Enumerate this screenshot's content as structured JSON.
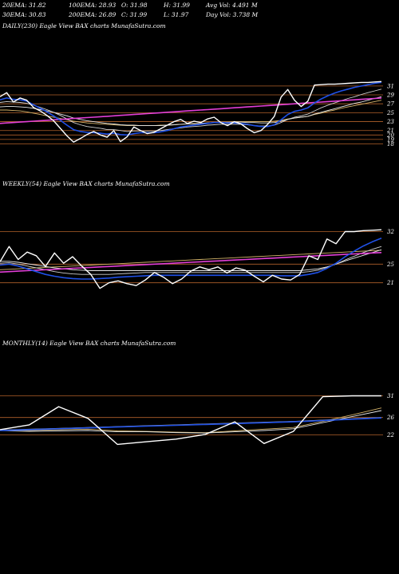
{
  "header": {
    "row1": [
      "20EMA: 31.82",
      "100EMA: 28.93",
      "O: 31.98",
      "H: 31.99",
      "Avg Vol: 4.491 M"
    ],
    "row2": [
      "30EMA: 30.83",
      "200EMA: 26.89",
      "C: 31.99",
      "L: 31.97",
      "Day Vol: 3.738  M"
    ]
  },
  "colors": {
    "background": "#000000",
    "gridline": "#b0602a",
    "price": "#ffffff",
    "ema_fast": "#1f50e6",
    "ema_mid": "#cfcfcf",
    "ema_slow": "#e8e8e8",
    "ema_long": "#e23fd6",
    "ema_alt": "#d4b36a"
  },
  "chart_data": [
    {
      "type": "line",
      "title": "DAILY(230) Eagle  View  BAX  charts MunafaSutra.com",
      "yticks": [
        31,
        29,
        27,
        25,
        23,
        21,
        20,
        19,
        18
      ],
      "ylim": [
        16.3,
        33.3
      ],
      "grid": true,
      "series": [
        {
          "key": "price",
          "values": [
            28.6,
            29.5,
            27.4,
            28.3,
            27.8,
            26.2,
            25.4,
            24.4,
            23.2,
            21.5,
            19.8,
            18.4,
            19.2,
            20.1,
            20.8,
            20.0,
            19.5,
            21.0,
            18.5,
            19.6,
            21.8,
            21.0,
            20.3,
            20.6,
            21.4,
            22.2,
            23.0,
            23.5,
            22.6,
            23.1,
            22.8,
            23.6,
            24.0,
            22.8,
            22.1,
            23.0,
            22.5,
            21.4,
            20.5,
            21.0,
            22.4,
            24.2,
            28.5,
            30.2,
            27.8,
            26.4,
            27.6,
            31.2,
            31.3,
            31.4,
            31.4,
            31.5,
            31.6,
            31.7,
            31.8,
            31.8,
            31.9,
            31.99
          ]
        },
        {
          "key": "ema_fast",
          "values": [
            27.9,
            28.3,
            28.0,
            27.9,
            27.6,
            26.8,
            26.0,
            25.2,
            24.3,
            23.3,
            22.2,
            21.2,
            20.8,
            20.6,
            20.5,
            20.4,
            20.2,
            20.4,
            20.1,
            20.0,
            20.3,
            20.5,
            20.5,
            20.5,
            20.7,
            21.0,
            21.4,
            21.8,
            22.0,
            22.2,
            22.4,
            22.6,
            22.8,
            22.8,
            22.7,
            22.7,
            22.6,
            22.4,
            22.1,
            21.9,
            21.9,
            22.3,
            23.4,
            24.6,
            25.3,
            25.6,
            26.1,
            27.2,
            28.1,
            28.8,
            29.4,
            29.9,
            30.3,
            30.7,
            31.0,
            31.3,
            31.6,
            31.82
          ]
        },
        {
          "key": "ema_mid",
          "values": [
            27.3,
            27.5,
            27.4,
            27.3,
            27.1,
            26.7,
            26.2,
            25.7,
            25.1,
            24.4,
            23.6,
            22.8,
            22.3,
            21.9,
            21.7,
            21.5,
            21.2,
            21.2,
            21.0,
            20.8,
            20.9,
            20.9,
            20.9,
            20.9,
            21.0,
            21.2,
            21.4,
            21.6,
            21.8,
            21.9,
            22.0,
            22.2,
            22.3,
            22.4,
            22.4,
            22.4,
            22.4,
            22.3,
            22.1,
            22.0,
            22.0,
            22.2,
            22.8,
            23.5,
            24.0,
            24.3,
            24.7,
            25.4,
            26.1,
            26.7,
            27.2,
            27.7,
            28.2,
            28.6,
            29.1,
            29.5,
            29.9,
            30.3
          ]
        },
        {
          "key": "ema_slow",
          "values": [
            26.3,
            26.4,
            26.4,
            26.3,
            26.2,
            26.0,
            25.7,
            25.4,
            25.1,
            24.7,
            24.3,
            23.8,
            23.5,
            23.2,
            23.0,
            22.8,
            22.6,
            22.5,
            22.3,
            22.2,
            22.2,
            22.1,
            22.1,
            22.1,
            22.1,
            22.2,
            22.3,
            22.4,
            22.5,
            22.5,
            22.6,
            22.7,
            22.8,
            22.8,
            22.8,
            22.9,
            22.9,
            22.8,
            22.8,
            22.7,
            22.7,
            22.8,
            23.1,
            23.5,
            23.8,
            24.0,
            24.2,
            24.7,
            25.1,
            25.5,
            25.9,
            26.3,
            26.7,
            27.1,
            27.4,
            27.8,
            28.2,
            28.6
          ]
        },
        {
          "key": "ema_long",
          "values": [
            22.6,
            22.7,
            22.8,
            22.9,
            23.0,
            23.1,
            23.2,
            23.3,
            23.4,
            23.5,
            23.6,
            23.7,
            23.8,
            23.9,
            24.0,
            24.1,
            24.2,
            24.3,
            24.4,
            24.5,
            24.6,
            24.7,
            24.8,
            24.9,
            25.0,
            25.1,
            25.2,
            25.3,
            25.4,
            25.5,
            25.6,
            25.7,
            25.8,
            25.9,
            26.0,
            26.1,
            26.2,
            26.3,
            26.4,
            26.5,
            26.6,
            26.7,
            26.8,
            26.9,
            27.0,
            27.1,
            27.2,
            27.3,
            27.4,
            27.5,
            27.6,
            27.7,
            27.8,
            27.9,
            28.0,
            28.1,
            28.2,
            28.3
          ]
        },
        {
          "key": "ema_alt",
          "values": [
            25.6,
            25.6,
            25.5,
            25.4,
            25.2,
            24.9,
            24.6,
            24.3,
            24.0,
            23.7,
            23.4,
            23.1,
            22.9,
            22.7,
            22.6,
            22.5,
            22.4,
            22.3,
            22.2,
            22.1,
            22.1,
            22.1,
            22.1,
            22.1,
            22.2,
            22.2,
            22.3,
            22.4,
            22.5,
            22.6,
            22.6,
            22.7,
            22.8,
            22.9,
            22.9,
            23.0,
            23.0,
            23.0,
            23.0,
            23.0,
            23.0,
            23.1,
            23.3,
            23.6,
            23.8,
            24.0,
            24.2,
            24.6,
            24.9,
            25.3,
            25.6,
            26.0,
            26.3,
            26.6,
            26.9,
            27.2,
            27.5,
            27.8
          ]
        }
      ]
    },
    {
      "type": "line",
      "title": "WEEKLY(54) Eagle  View  BAX  charts MunafaSutra.com",
      "yticks": [
        32,
        25,
        21
      ],
      "ylim": [
        17.0,
        33.8
      ],
      "grid": true,
      "series": [
        {
          "key": "price",
          "values": [
            25.5,
            28.8,
            26.0,
            27.6,
            26.8,
            24.5,
            27.4,
            25.2,
            26.6,
            24.6,
            22.8,
            19.8,
            21.0,
            21.4,
            20.8,
            20.4,
            21.6,
            23.2,
            22.2,
            20.8,
            21.8,
            23.5,
            24.4,
            23.8,
            24.4,
            23.1,
            24.2,
            23.7,
            22.4,
            21.2,
            22.6,
            21.8,
            21.6,
            22.8,
            26.8,
            26.0,
            30.4,
            29.4,
            32.0,
            32.0,
            32.2,
            32.3,
            32.4
          ]
        },
        {
          "key": "ema_fast",
          "values": [
            24.8,
            25.0,
            24.6,
            24.0,
            23.4,
            22.8,
            22.4,
            22.1,
            21.9,
            21.8,
            21.8,
            21.9,
            22.0,
            22.2,
            22.3,
            22.4,
            22.5,
            22.6,
            22.6,
            22.6,
            22.6,
            22.6,
            22.6,
            22.6,
            22.6,
            22.6,
            22.6,
            22.6,
            22.6,
            22.6,
            22.6,
            22.5,
            22.5,
            22.5,
            22.8,
            23.2,
            24.1,
            25.2,
            26.6,
            27.8,
            28.9,
            29.8,
            30.6
          ]
        },
        {
          "key": "ema_mid",
          "values": [
            25.2,
            25.3,
            25.0,
            24.6,
            24.2,
            23.8,
            23.4,
            23.1,
            22.9,
            22.8,
            22.8,
            22.8,
            22.8,
            22.9,
            23.0,
            23.1,
            23.2,
            23.2,
            23.2,
            23.2,
            23.2,
            23.2,
            23.2,
            23.2,
            23.2,
            23.2,
            23.2,
            23.2,
            23.2,
            23.2,
            23.2,
            23.2,
            23.2,
            23.2,
            23.4,
            23.7,
            24.3,
            25.0,
            25.9,
            26.7,
            27.5,
            28.2,
            28.8
          ]
        },
        {
          "key": "ema_slow",
          "values": [
            25.6,
            25.6,
            25.4,
            25.1,
            24.8,
            24.5,
            24.2,
            24.0,
            23.8,
            23.7,
            23.6,
            23.6,
            23.6,
            23.6,
            23.6,
            23.6,
            23.6,
            23.6,
            23.6,
            23.6,
            23.6,
            23.6,
            23.6,
            23.6,
            23.6,
            23.6,
            23.6,
            23.6,
            23.6,
            23.6,
            23.6,
            23.6,
            23.6,
            23.6,
            23.8,
            24.0,
            24.4,
            25.0,
            25.7,
            26.3,
            26.9,
            27.5,
            28.1
          ]
        },
        {
          "key": "ema_long",
          "values": [
            23.3,
            23.4,
            23.5,
            23.6,
            23.7,
            23.8,
            23.9,
            24.0,
            24.1,
            24.2,
            24.3,
            24.4,
            24.5,
            24.6,
            24.7,
            24.8,
            24.9,
            25.0,
            25.1,
            25.2,
            25.3,
            25.4,
            25.5,
            25.6,
            25.7,
            25.8,
            25.9,
            26.0,
            26.1,
            26.2,
            26.3,
            26.4,
            26.5,
            26.6,
            26.7,
            26.8,
            26.9,
            27.0,
            27.1,
            27.2,
            27.3,
            27.4,
            27.5
          ]
        },
        {
          "key": "ema_alt",
          "values": [
            23.8,
            23.9,
            24.0,
            24.1,
            24.2,
            24.3,
            24.4,
            24.5,
            24.6,
            24.7,
            24.8,
            24.9,
            25.0,
            25.1,
            25.2,
            25.3,
            25.4,
            25.5,
            25.6,
            25.7,
            25.8,
            25.9,
            26.0,
            26.1,
            26.2,
            26.3,
            26.4,
            26.5,
            26.6,
            26.7,
            26.8,
            26.9,
            27.0,
            27.1,
            27.2,
            27.3,
            27.4,
            27.5,
            27.6,
            27.7,
            27.8,
            27.9,
            28.0
          ]
        }
      ]
    },
    {
      "type": "line",
      "title": "MONTHLY(14) Eagle  View  BAX  charts MunafaSutra.com",
      "yticks": [
        31,
        26,
        22
      ],
      "ylim": [
        16.0,
        36.8
      ],
      "grid": true,
      "series": [
        {
          "key": "price",
          "values": [
            23.2,
            24.3,
            28.5,
            25.8,
            19.8,
            20.4,
            21.0,
            22.1,
            25.0,
            20.0,
            22.8,
            30.8,
            31.0,
            31.0
          ]
        },
        {
          "key": "ema_fast",
          "values": [
            23.0,
            23.2,
            23.4,
            23.6,
            23.8,
            24.0,
            24.2,
            24.4,
            24.6,
            24.8,
            25.0,
            25.3,
            25.6,
            25.9
          ]
        },
        {
          "key": "ema_mid",
          "values": [
            23.1,
            23.3,
            23.5,
            23.7,
            23.9,
            24.1,
            24.3,
            24.5,
            24.7,
            24.9,
            25.1,
            25.4,
            25.7,
            26.0
          ]
        },
        {
          "key": "ema_slow",
          "values": [
            23.0,
            22.8,
            22.9,
            23.0,
            22.7,
            22.7,
            22.5,
            22.4,
            22.7,
            23.0,
            23.4,
            24.8,
            26.2,
            27.6
          ]
        },
        {
          "key": "ema_alt",
          "values": [
            23.2,
            23.0,
            23.2,
            23.3,
            22.9,
            22.8,
            22.6,
            22.5,
            22.9,
            23.3,
            23.7,
            25.1,
            26.6,
            28.2
          ]
        }
      ]
    }
  ]
}
